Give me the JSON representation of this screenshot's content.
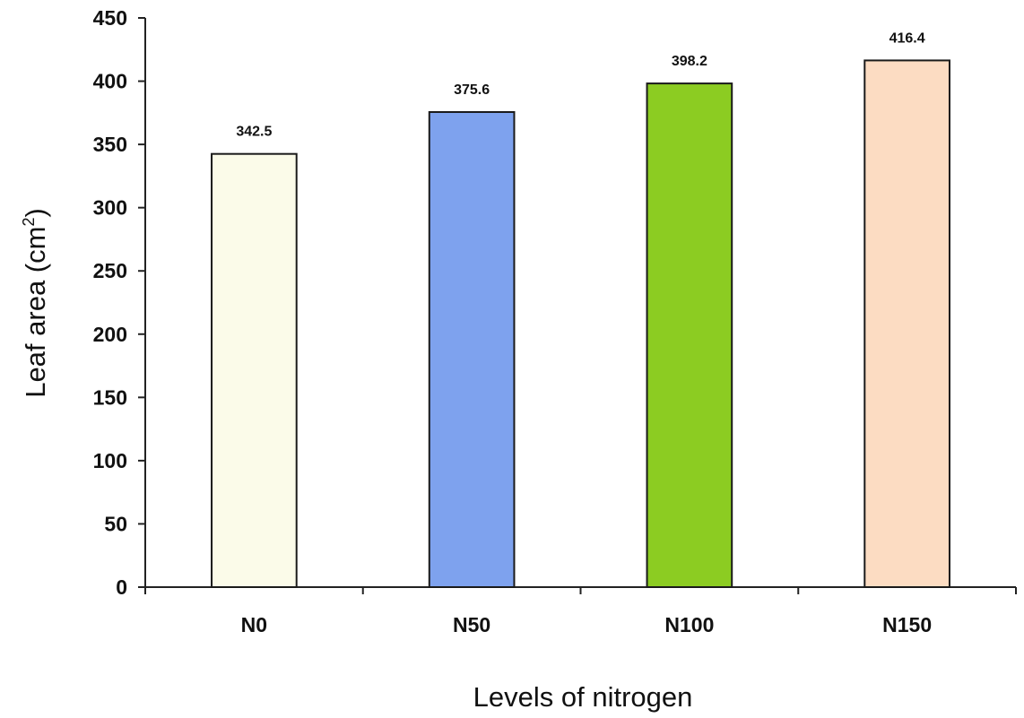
{
  "chart_data": {
    "type": "bar",
    "categories": [
      "N0",
      "N50",
      "N100",
      "N150"
    ],
    "values": [
      342.5,
      375.6,
      398.2,
      416.4
    ],
    "data_labels": [
      "342.5",
      "375.6",
      "398.2",
      "416.4"
    ],
    "colors": [
      "#fbfbe9",
      "#7ea2ee",
      "#8ccc22",
      "#fcdcc2"
    ],
    "xlabel": "Levels of nitrogen",
    "ylabel": "Leaf area (cm",
    "ylabel_superscript": "2",
    "ylabel_suffix": ")",
    "ylim": [
      0,
      450
    ],
    "yticks": [
      0,
      50,
      100,
      150,
      200,
      250,
      300,
      350,
      400,
      450
    ],
    "grid": false,
    "legend": "none"
  }
}
